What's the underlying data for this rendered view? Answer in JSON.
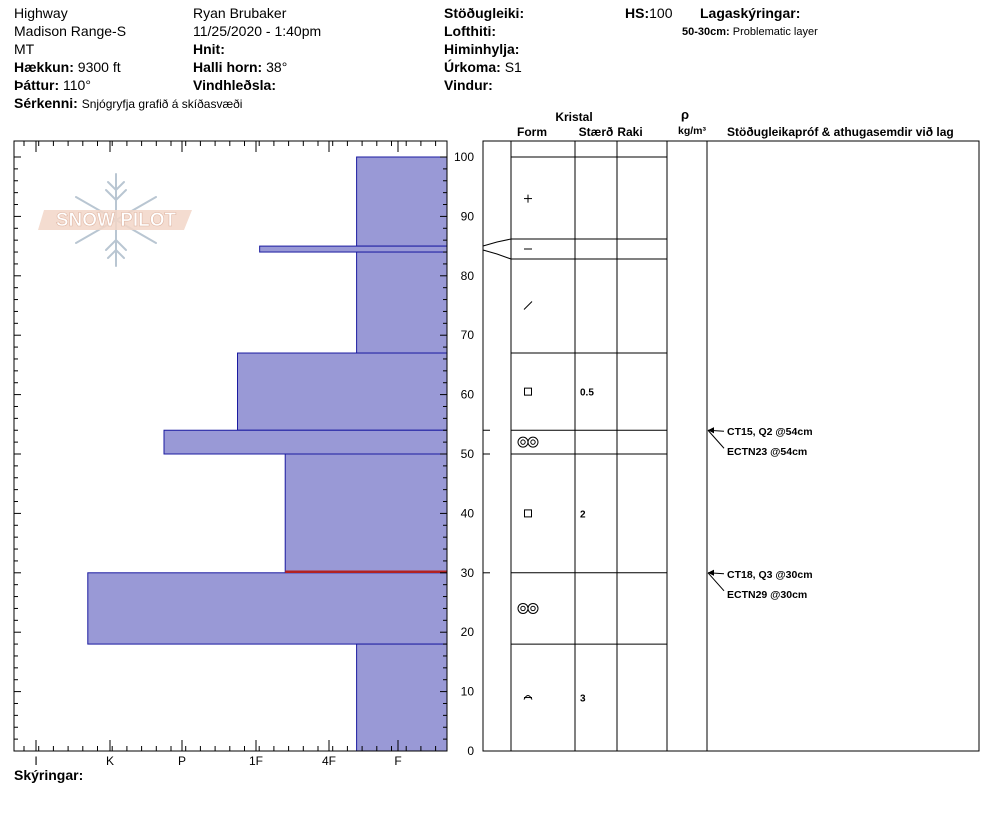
{
  "header": {
    "location": "Highway",
    "range": "Madison Range-S",
    "state": "MT",
    "elevation_label": "Hækkun:",
    "elevation": "9300 ft",
    "aspect_label": "Þáttur:",
    "aspect": "110°",
    "features_label": "Sérkenni:",
    "features": "Snjógryfja grafið á skíðasvæði",
    "observer": "Ryan Brubaker",
    "datetime": "11/25/2020 - 1:40pm",
    "coords_label": "Hnit:",
    "slope_label": "Halli horn:",
    "slope": "38°",
    "wind_loading_label": "Vindhleðsla:",
    "stability_label": "Stöðugleiki:",
    "air_temp_label": "Lofthiti:",
    "sky_label": "Himinhylja:",
    "precip_label": "Úrkoma:",
    "precip": "S1",
    "wind_label": "Vindur:",
    "hs_label": "HS:",
    "hs": "100",
    "layer_notes_label": "Lagaskýringar:",
    "layer_note_range": "50-30cm:",
    "layer_note_text": "Problematic layer",
    "legend_label": "Skýringar:"
  },
  "logo_text": "SNOW PILOT",
  "columns": {
    "crystal": "Kristal",
    "form": "Form",
    "size": "Stærð",
    "moisture": "Raki",
    "rho": "ρ",
    "density_unit": "kg/m³",
    "tests": "Stöðugleikapróf & athugasemdir við lag"
  },
  "chart_data": {
    "type": "bar",
    "orientation": "horizontal",
    "ylim": [
      0,
      100
    ],
    "yticks": [
      0,
      10,
      20,
      30,
      40,
      50,
      60,
      70,
      80,
      90,
      100
    ],
    "hardness_scale": [
      "I",
      "K",
      "P",
      "1F",
      "4F",
      "F"
    ],
    "hardness_layers": [
      {
        "top": 100,
        "bottom": 85,
        "hardness": 0.6
      },
      {
        "top": 85,
        "bottom": 84,
        "hardness": 1.95
      },
      {
        "top": 84,
        "bottom": 67,
        "hardness": 0.6
      },
      {
        "top": 67,
        "bottom": 54,
        "hardness": 2.25
      },
      {
        "top": 54,
        "bottom": 50,
        "hardness": 3.25
      },
      {
        "top": 50,
        "bottom": 30,
        "hardness": 1.6
      },
      {
        "top": 30,
        "bottom": 18,
        "hardness": 4.3
      },
      {
        "top": 18,
        "bottom": 0,
        "hardness": 0.6
      }
    ],
    "problem_layer_depth": 30,
    "layer_boundaries": [
      100,
      86,
      83,
      67,
      54,
      50,
      30,
      18,
      0
    ],
    "grain_layers": [
      {
        "mid": 93,
        "form": "precipitation-plus",
        "size": ""
      },
      {
        "mid": 84.5,
        "form": "dash",
        "size": ""
      },
      {
        "mid": 75,
        "form": "slash",
        "size": ""
      },
      {
        "mid": 60.5,
        "form": "square",
        "size": "0.5"
      },
      {
        "mid": 52,
        "form": "double-ring",
        "size": ""
      },
      {
        "mid": 40,
        "form": "square",
        "size": "2"
      },
      {
        "mid": 24,
        "form": "double-ring",
        "size": ""
      },
      {
        "mid": 9,
        "form": "cup",
        "size": "3"
      }
    ],
    "tests": [
      {
        "depth": 54,
        "label": "CT15, Q2 @54cm"
      },
      {
        "depth": 54,
        "label": "ECTN23 @54cm"
      },
      {
        "depth": 30,
        "label": "CT18, Q3 @30cm"
      },
      {
        "depth": 30,
        "label": "ECTN29 @30cm"
      }
    ],
    "colors": {
      "bar_fill": "#9999d6",
      "bar_stroke": "#1a1aa0",
      "problem": "#b22222"
    }
  }
}
